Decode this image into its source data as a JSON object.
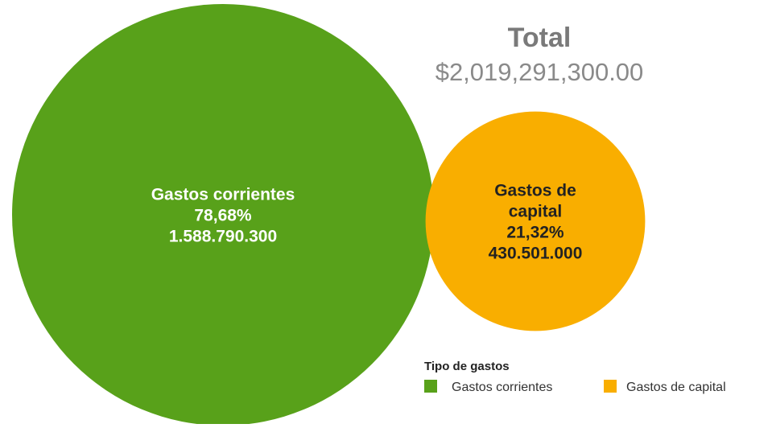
{
  "chart_data": {
    "type": "bubble",
    "total": {
      "label": "Total",
      "value_text": "$2,019,291,300.00"
    },
    "series": [
      {
        "name": "Gastos corrientes",
        "value": 1588790300,
        "label_lines": [
          "Gastos corrientes",
          "78,68%",
          "1.588.790.300"
        ],
        "percent": 78.68,
        "color": "#58a11a",
        "label_color": "#ffffff"
      },
      {
        "name": "Gastos de capital",
        "value": 430501000,
        "label_lines": [
          "Gastos de",
          "capital",
          "21,32%",
          "430.501.000"
        ],
        "percent": 21.32,
        "color": "#f9ae00",
        "label_color": "#222222"
      }
    ],
    "legend": {
      "title": "Tipo de gastos",
      "position": "bottom-right",
      "items": [
        "Gastos corrientes",
        "Gastos de capital"
      ]
    }
  }
}
